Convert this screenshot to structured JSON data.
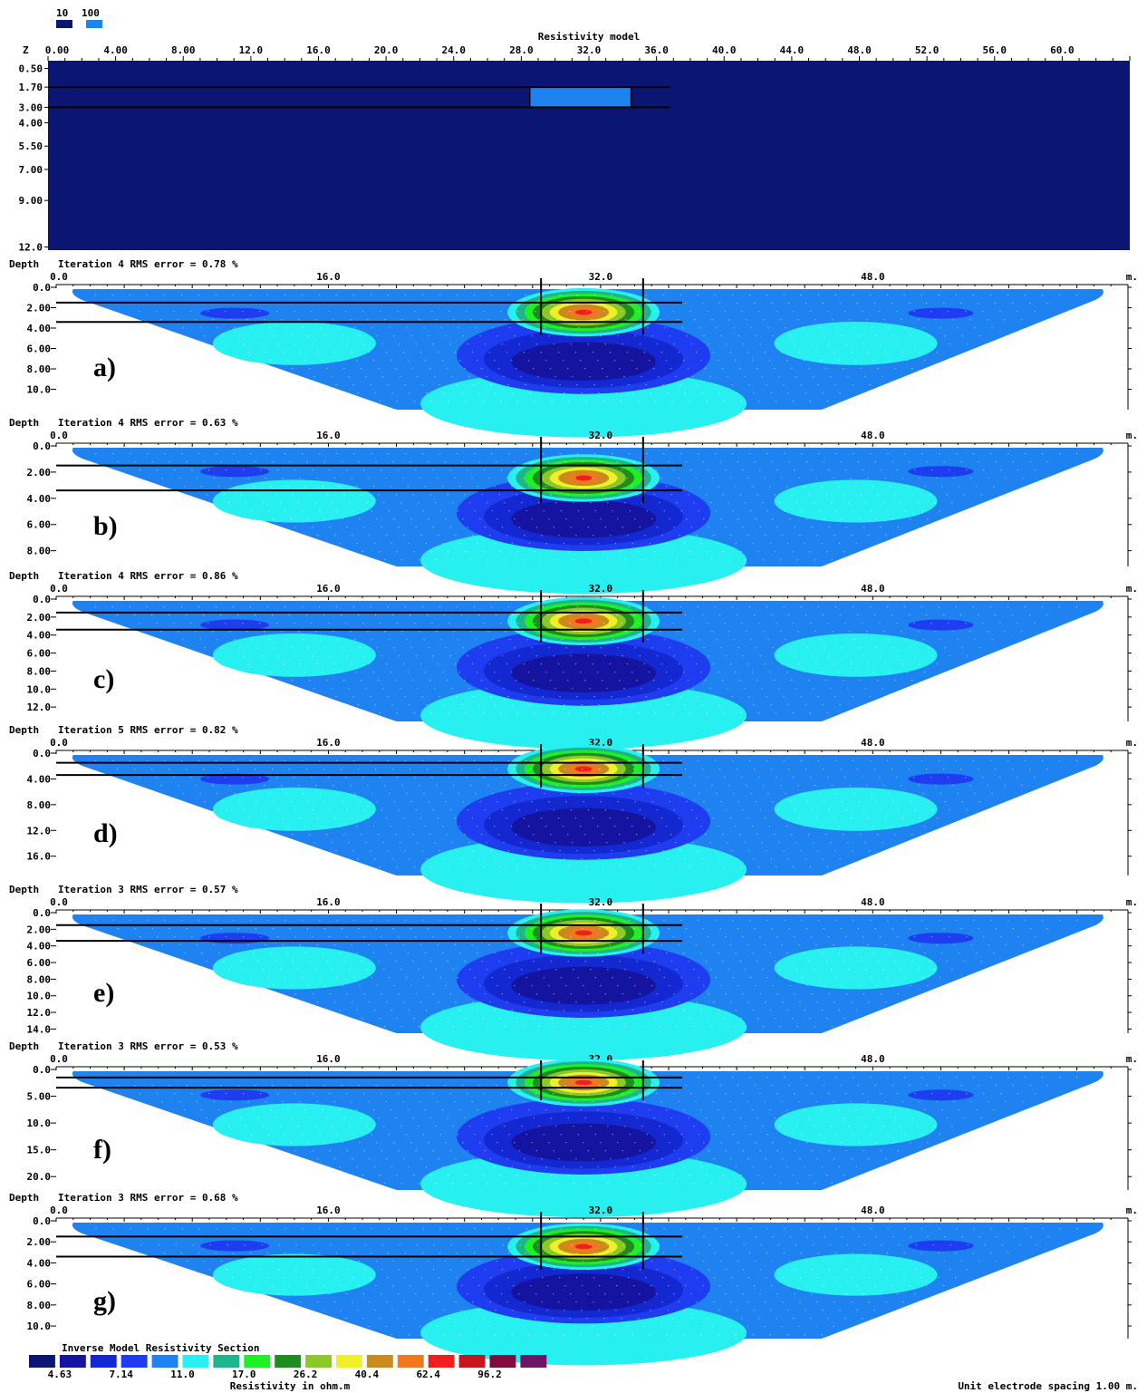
{
  "legend_top": {
    "labels": [
      "10",
      "100"
    ],
    "colors": [
      "#0a1672",
      "#1e82f0"
    ]
  },
  "model": {
    "title": "Resistivity model",
    "z_label": "Z",
    "x_ticks": [
      "0.00",
      "4.00",
      "8.00",
      "12.0",
      "16.0",
      "20.0",
      "24.0",
      "28.0",
      "32.0",
      "36.0",
      "40.0",
      "44.0",
      "48.0",
      "52.0",
      "56.0",
      "60.0"
    ],
    "z_ticks": [
      "0.50",
      "1.70",
      "3.00",
      "4.00",
      "5.50",
      "7.00",
      "9.00",
      "12.0"
    ],
    "background_resistivity": 10,
    "block_resistivity": 100,
    "block": {
      "x_from": 28.5,
      "x_to": 34.5,
      "z_from": 1.7,
      "z_to": 3.0
    }
  },
  "panels": [
    {
      "id": "a",
      "letter": "a)",
      "depth_label": "Depth",
      "iteration_text": "Iteration 4 RMS error = 0.78 %",
      "x_ticks": [
        "0.0",
        "16.0",
        "32.0",
        "48.0"
      ],
      "x_unit": "m.",
      "y_ticks": [
        "0.0",
        "2.00",
        "4.00",
        "6.00",
        "8.00",
        "10.0"
      ],
      "max_depth": 12.0
    },
    {
      "id": "b",
      "letter": "b)",
      "depth_label": "Depth",
      "iteration_text": "Iteration 4 RMS error = 0.63 %",
      "x_ticks": [
        "0.0",
        "16.0",
        "32.0",
        "48.0"
      ],
      "x_unit": "m.",
      "y_ticks": [
        "0.0",
        "2.00",
        "4.00",
        "6.00",
        "8.00"
      ],
      "max_depth": 9.2
    },
    {
      "id": "c",
      "letter": "c)",
      "depth_label": "Depth",
      "iteration_text": "Iteration 4 RMS error = 0.86 %",
      "x_ticks": [
        "0.0",
        "16.0",
        "32.0",
        "48.0"
      ],
      "x_unit": "m.",
      "y_ticks": [
        "0.0",
        "2.00",
        "4.00",
        "6.00",
        "8.00",
        "10.0",
        "12.0"
      ],
      "max_depth": 13.6
    },
    {
      "id": "d",
      "letter": "d)",
      "depth_label": "Depth",
      "iteration_text": "Iteration 5 RMS error = 0.82 %",
      "x_ticks": [
        "0.0",
        "16.0",
        "32.0",
        "48.0"
      ],
      "x_unit": "m.",
      "y_ticks": [
        "0.0",
        "4.00",
        "8.00",
        "12.0",
        "16.0"
      ],
      "max_depth": 19.0
    },
    {
      "id": "e",
      "letter": "e)",
      "depth_label": "Depth",
      "iteration_text": "Iteration 3 RMS error = 0.57 %",
      "x_ticks": [
        "0.0",
        "16.0",
        "32.0",
        "48.0"
      ],
      "x_unit": "m.",
      "y_ticks": [
        "0.0",
        "2.00",
        "4.00",
        "6.00",
        "8.00",
        "10.0",
        "12.0",
        "14.0"
      ],
      "max_depth": 14.5
    },
    {
      "id": "f",
      "letter": "f)",
      "depth_label": "Depth",
      "iteration_text": "Iteration 3 RMS error = 0.53 %",
      "x_ticks": [
        "0.0",
        "16.0",
        "32.0",
        "48.0"
      ],
      "x_unit": "m.",
      "y_ticks": [
        "0.0",
        "5.00",
        "10.0",
        "15.0",
        "20.0"
      ],
      "max_depth": 22.5
    },
    {
      "id": "g",
      "letter": "g)",
      "depth_label": "Depth",
      "iteration_text": "Iteration 3 RMS error = 0.68 %",
      "x_ticks": [
        "0.0",
        "16.0",
        "32.0",
        "48.0"
      ],
      "x_unit": "m.",
      "y_ticks": [
        "0.0",
        "2.00",
        "4.00",
        "6.00",
        "8.00",
        "10.0"
      ],
      "max_depth": 11.2
    }
  ],
  "colorbar": {
    "title": "Inverse Model Resistivity Section",
    "colors": [
      "#0a1672",
      "#1414a0",
      "#1428d2",
      "#1e3cf0",
      "#1e82f0",
      "#28f0f0",
      "#1eb48c",
      "#1ef028",
      "#1e8c1e",
      "#8cc828",
      "#f0f028",
      "#c88c1e",
      "#f0781e",
      "#f01e1e",
      "#c8141e",
      "#820a3c",
      "#6e1464"
    ],
    "labels": [
      "4.63",
      "7.14",
      "11.0",
      "17.0",
      "26.2",
      "40.4",
      "62.4",
      "96.2"
    ],
    "unit": "Resistivity in ohm.m"
  },
  "footer_note": "Unit electrode spacing 1.00 m.",
  "chart_data": {
    "type": "heatmap",
    "title": "Resistivity model",
    "xlabel": "m.",
    "ylabel": "Depth",
    "x_range": [
      0,
      64
    ],
    "model_values": {
      "background": 10,
      "anomaly": 100,
      "anomaly_x": [
        28.5,
        34.5
      ],
      "anomaly_depth": [
        1.7,
        3.0
      ]
    },
    "inversions": [
      {
        "panel": "a)",
        "iteration": 4,
        "rms_error": 0.78
      },
      {
        "panel": "b)",
        "iteration": 4,
        "rms_error": 0.63
      },
      {
        "panel": "c)",
        "iteration": 4,
        "rms_error": 0.86
      },
      {
        "panel": "d)",
        "iteration": 5,
        "rms_error": 0.82
      },
      {
        "panel": "e)",
        "iteration": 3,
        "rms_error": 0.57
      },
      {
        "panel": "f)",
        "iteration": 3,
        "rms_error": 0.53
      },
      {
        "panel": "g)",
        "iteration": 3,
        "rms_error": 0.68
      }
    ],
    "colorbar_levels": [
      4.63,
      7.14,
      11.0,
      17.0,
      26.2,
      40.4,
      62.4,
      96.2
    ]
  }
}
